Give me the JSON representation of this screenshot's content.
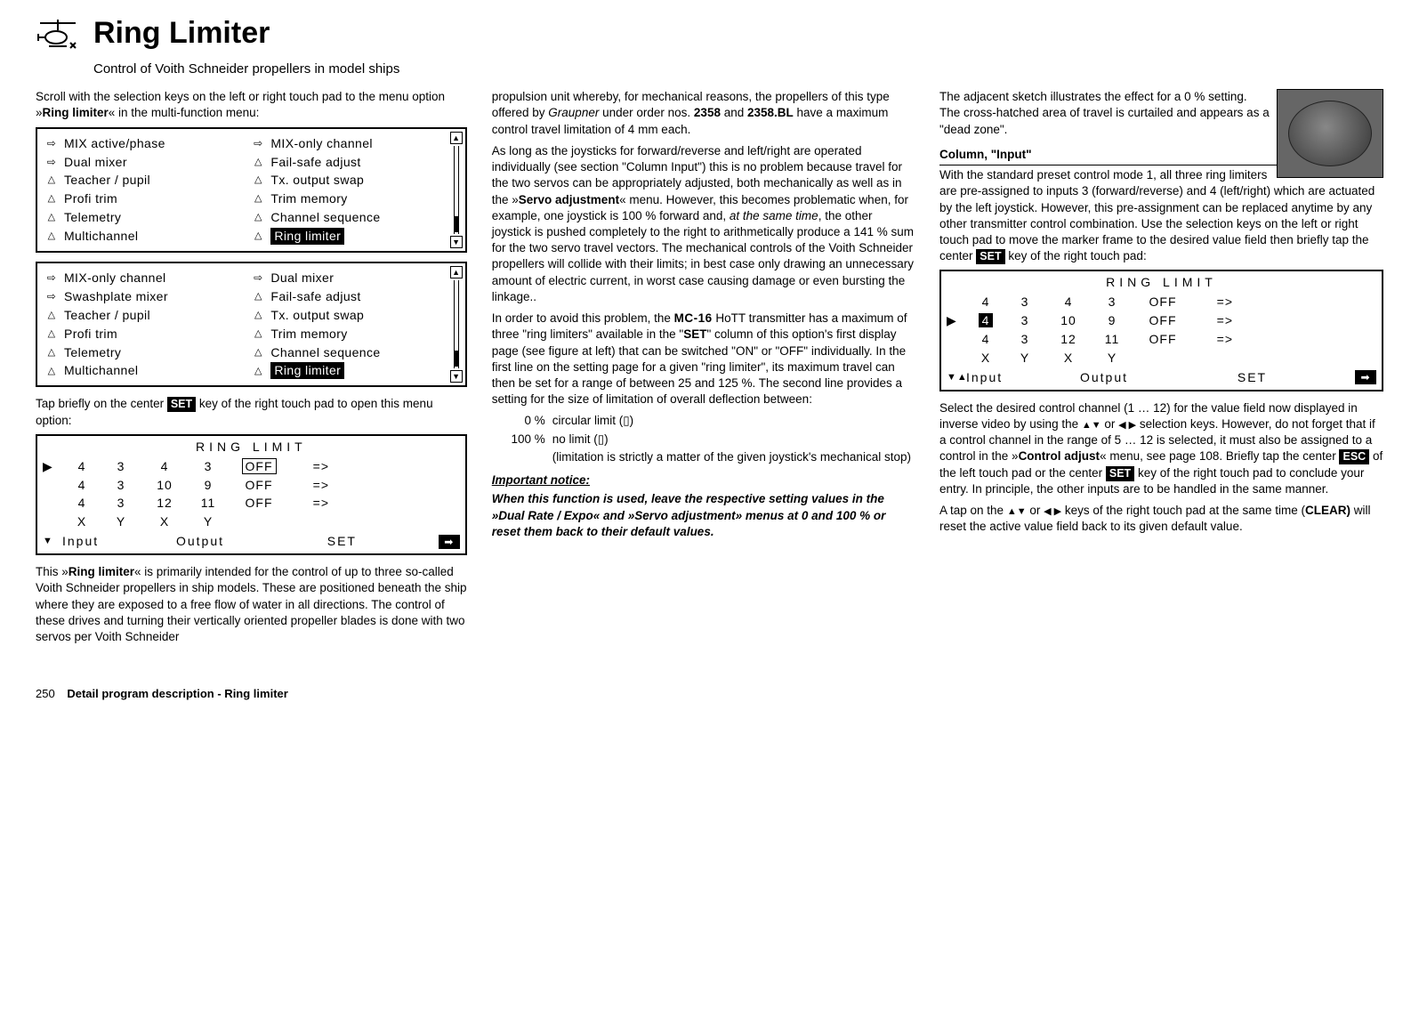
{
  "header": {
    "title": "Ring Limiter",
    "subtitle": "Control of Voith Schneider propellers in model ships"
  },
  "col1": {
    "intro_a": "Scroll with the selection keys on the left or right touch pad to the menu option »",
    "intro_b": "Ring limiter",
    "intro_c": "« in the multi-function menu:",
    "menu1": {
      "left": [
        {
          "icon": "mix",
          "label": "MIX active/phase"
        },
        {
          "icon": "mix",
          "label": "Dual mixer"
        },
        {
          "icon": "tri",
          "label": "Teacher / pupil"
        },
        {
          "icon": "tri",
          "label": "Profi trim"
        },
        {
          "icon": "tri",
          "label": "Telemetry"
        },
        {
          "icon": "tri",
          "label": "Multichannel"
        }
      ],
      "right": [
        {
          "icon": "mix",
          "label": "MIX-only channel"
        },
        {
          "icon": "tri",
          "label": "Fail-safe adjust"
        },
        {
          "icon": "tri",
          "label": "Tx. output swap"
        },
        {
          "icon": "tri",
          "label": "Trim memory"
        },
        {
          "icon": "tri",
          "label": "Channel sequence"
        },
        {
          "icon": "tri",
          "label": "Ring limiter",
          "hl": true
        }
      ]
    },
    "menu2": {
      "left": [
        {
          "icon": "mix",
          "label": "MIX-only channel"
        },
        {
          "icon": "mix",
          "label": "Swashplate mixer"
        },
        {
          "icon": "tri",
          "label": "Teacher / pupil"
        },
        {
          "icon": "tri",
          "label": "Profi trim"
        },
        {
          "icon": "tri",
          "label": "Telemetry"
        },
        {
          "icon": "tri",
          "label": "Multichannel"
        }
      ],
      "right": [
        {
          "icon": "mix",
          "label": "Dual mixer"
        },
        {
          "icon": "tri",
          "label": "Fail-safe adjust"
        },
        {
          "icon": "tri",
          "label": "Tx. output swap"
        },
        {
          "icon": "tri",
          "label": "Trim memory"
        },
        {
          "icon": "tri",
          "label": "Channel sequence"
        },
        {
          "icon": "tri",
          "label": "Ring limiter",
          "hl": true
        }
      ]
    },
    "after_menus_a": "Tap briefly on the center ",
    "set_key": "SET",
    "after_menus_b": " key of the right touch pad to open this menu option:",
    "ring_table": {
      "title": "RING  LIMIT",
      "rows": [
        {
          "marker": "▶",
          "a": "4",
          "b": "3",
          "c": "4",
          "d": "3",
          "e": "OFF",
          "e_box": true,
          "f": "=>"
        },
        {
          "marker": "",
          "a": "4",
          "b": "3",
          "c": "10",
          "d": "9",
          "e": "OFF",
          "f": "=>"
        },
        {
          "marker": "",
          "a": "4",
          "b": "3",
          "c": "12",
          "d": "11",
          "e": "OFF",
          "f": "=>"
        },
        {
          "marker": "",
          "a": "X",
          "b": "Y",
          "c": "X",
          "d": "Y",
          "e": "",
          "f": ""
        }
      ],
      "footer": {
        "arrow": "▼",
        "input": "Input",
        "output": "Output",
        "set": "SET",
        "end": "➡"
      }
    },
    "tail_a": "This »",
    "tail_b": "Ring limiter",
    "tail_c": "« is primarily intended for the control of up to three so-called Voith Schneider propellers in ship models. These are positioned beneath the ship where they are exposed to a free flow of water in all directions. The control of these drives and turning their vertically oriented propeller blades is done with two servos per Voith Schneider"
  },
  "col2": {
    "p1a": "propulsion unit whereby, for mechanical reasons, the propellers of this type offered by ",
    "p1b_i": "Graupner",
    "p1c": " under order nos. ",
    "p1d_b": "2358",
    "p1e": " and ",
    "p1f_b": "2358.BL",
    "p1g": " have a maximum control travel limitation of 4 mm each.",
    "p2a": "As long as the joysticks for forward/reverse and left/right are operated individually (see section \"Column Input\") this is no problem because travel for the two servos can be appropriately adjusted, both mechanically as well as in the »",
    "p2b_b": "Servo adjustment",
    "p2c": "« menu. However, this becomes problematic when, for example, one joystick is 100 % forward and, ",
    "p2d_i": "at the same time",
    "p2e": ", the other joystick is pushed completely to the right to arithmetically produce a 141 % sum for the two servo travel vectors. The mechanical controls of the Voith Schneider propellers will collide with their limits; in best case only drawing an unnecessary amount of electric current, in worst case causing damage or even bursting the linkage..",
    "p3a": "In order to avoid this problem, the ",
    "p3b_mc": "MC-16",
    "p3c": " HoTT transmitter has a maximum of three \"ring limiters\" available in the \"",
    "p3d_b": "SET",
    "p3e": "\" column of this option's first display page (see figure at left) that can be switched \"ON\" or \"OFF\" individually. In the first line on the setting page for a given \"ring limiter\", its maximum travel can then be set for a range of between 25 and 125 %. The second line provides a setting for the size of limitation of overall deflection between:",
    "list": [
      {
        "pct": "0 %",
        "txt": "circular limit (▯)"
      },
      {
        "pct": "100 %",
        "txt": "no limit (▯)"
      },
      {
        "pct": "",
        "txt": "(limitation is strictly a matter of the given joystick's mechanical stop)"
      }
    ],
    "notice_head": "Important notice:",
    "notice_body": "When this function is used, leave the respective setting values in the »Dual Rate / Expo« and »Servo adjustment» menus at 0 and 100 % or reset them back to their default values."
  },
  "col3": {
    "p1": "The adjacent sketch illustrates the effect for a 0 % setting. The cross-hatched area of travel is curtailed and appears as a \"dead zone\".",
    "sect": "Column, \"Input\"",
    "p2a": "With the standard preset control mode 1, all three ring limiters are pre-assigned to inputs 3 (forward/reverse) and 4 (left/right) which are actuated by the left joystick. However, this pre-assignment can be replaced anytime by any other transmitter control combination. Use the selection keys on the left or right touch pad to move the marker frame to the desired value field then briefly tap the center ",
    "p2b_key": "SET",
    "p2c": " key of the right touch pad:",
    "ring_table": {
      "title": "RING  LIMIT",
      "rows": [
        {
          "marker": "",
          "a": "4",
          "b": "3",
          "c": "4",
          "d": "3",
          "e": "OFF",
          "f": "=>"
        },
        {
          "marker": "▶",
          "a": "4",
          "a_inv": true,
          "b": "3",
          "c": "10",
          "d": "9",
          "e": "OFF",
          "f": "=>"
        },
        {
          "marker": "",
          "a": "4",
          "b": "3",
          "c": "12",
          "d": "11",
          "e": "OFF",
          "f": "=>"
        },
        {
          "marker": "",
          "a": "X",
          "b": "Y",
          "c": "X",
          "d": "Y",
          "e": "",
          "f": ""
        }
      ],
      "footer": {
        "arrow": "▼▲",
        "input": "Input",
        "output": "Output",
        "set": "SET",
        "end": "➡"
      }
    },
    "p3a": "Select the desired control channel (1 … 12) for the value field now displayed in inverse video by using the ",
    "p3b_sym": "▲▼",
    "p3c": " or ",
    "p3d_sym": "◀ ▶",
    "p3e": " selection keys. However, do not forget that if a control channel in the range of 5 … 12 is selected, it must also be assigned to a control in the »",
    "p3f_b": "Control adjust",
    "p3g": "« menu, see page 108. Briefly tap the center ",
    "p3h_key": "ESC",
    "p3i": " of the left touch pad or the center ",
    "p3j_key": "SET",
    "p3k": " key of the right touch pad to conclude your entry. In principle, the other inputs are to be handled in the same manner.",
    "p4a": "A tap on the ",
    "p4b_sym": "▲▼",
    "p4c": " or ",
    "p4d_sym": "◀ ▶",
    "p4e": " keys of the right touch pad at the same time (",
    "p4f_b": "CLEAR)",
    "p4g": " will reset the active value field back to its given default value."
  },
  "footer": {
    "page": "250",
    "title": "Detail program description - Ring limiter"
  }
}
